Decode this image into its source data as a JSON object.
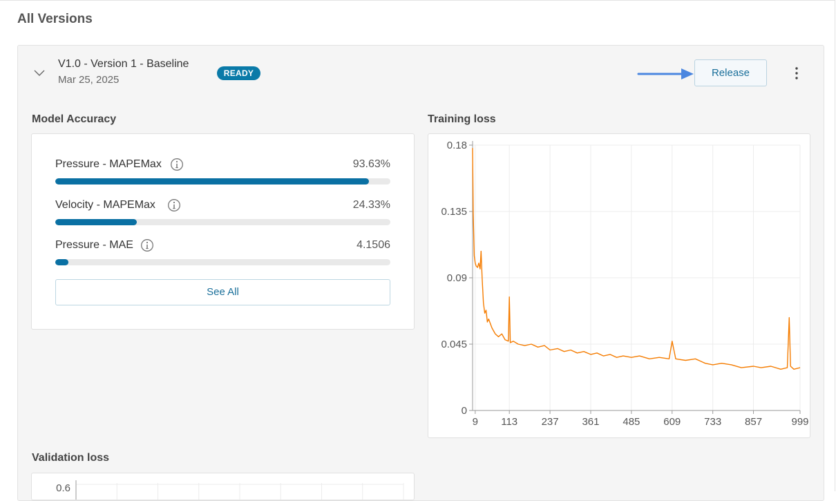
{
  "page": {
    "title": "All Versions"
  },
  "version": {
    "name": "V1.0 - Version 1 - Baseline",
    "date": "Mar 25, 2025",
    "status": "READY",
    "release_label": "Release",
    "icons": {
      "expand": "chevron-down-icon",
      "more": "more-vertical-icon",
      "annotation": "arrow-right-icon"
    }
  },
  "accuracy": {
    "title": "Model Accuracy",
    "metrics": [
      {
        "label": "Pressure - MAPEMax",
        "value": "93.63%",
        "fill": 0.9363
      },
      {
        "label": "Velocity - MAPEMax",
        "value": "24.33%",
        "fill": 0.2433
      },
      {
        "label": "Pressure - MAE",
        "value": "4.1506",
        "fill": 0.04
      }
    ],
    "see_all_label": "See All"
  },
  "training_loss": {
    "title": "Training loss"
  },
  "validation_loss": {
    "title": "Validation loss"
  },
  "colors": {
    "accent": "#0a70a3",
    "series": "#f57c00",
    "badge": "#0a7aa8",
    "annotation_arrow": "#4a86e0"
  },
  "chart_data": [
    {
      "type": "line",
      "title": "Training loss",
      "xlabel": "",
      "ylabel": "",
      "x_ticks": [
        "9",
        "113",
        "237",
        "361",
        "485",
        "609",
        "733",
        "857",
        "999"
      ],
      "y_ticks": [
        "0",
        "0.045",
        "0.09",
        "0.135",
        "0.18"
      ],
      "xlim": [
        1,
        999
      ],
      "ylim": [
        0,
        0.18
      ],
      "grid": true,
      "series": [
        {
          "color": "#f57c00",
          "x": [
            1,
            3,
            6,
            9,
            12,
            16,
            20,
            24,
            27,
            30,
            34,
            38,
            42,
            46,
            50,
            60,
            70,
            80,
            90,
            100,
            110,
            113,
            116,
            125,
            140,
            160,
            180,
            200,
            220,
            237,
            260,
            280,
            300,
            320,
            340,
            361,
            380,
            400,
            420,
            440,
            460,
            485,
            510,
            540,
            570,
            600,
            609,
            620,
            650,
            680,
            710,
            733,
            760,
            790,
            820,
            857,
            880,
            910,
            940,
            960,
            966,
            970,
            980,
            999
          ],
          "y": [
            0.178,
            0.134,
            0.105,
            0.1,
            0.098,
            0.097,
            0.1,
            0.096,
            0.108,
            0.09,
            0.073,
            0.066,
            0.068,
            0.06,
            0.062,
            0.056,
            0.052,
            0.05,
            0.052,
            0.048,
            0.047,
            0.077,
            0.046,
            0.047,
            0.045,
            0.044,
            0.045,
            0.043,
            0.044,
            0.041,
            0.042,
            0.04,
            0.041,
            0.039,
            0.04,
            0.038,
            0.039,
            0.037,
            0.038,
            0.036,
            0.037,
            0.036,
            0.037,
            0.035,
            0.036,
            0.035,
            0.047,
            0.035,
            0.034,
            0.035,
            0.032,
            0.031,
            0.032,
            0.031,
            0.029,
            0.03,
            0.029,
            0.03,
            0.028,
            0.029,
            0.063,
            0.03,
            0.028,
            0.029
          ]
        }
      ]
    },
    {
      "type": "line",
      "title": "Validation loss",
      "y_ticks": [
        "0.6"
      ]
    }
  ]
}
